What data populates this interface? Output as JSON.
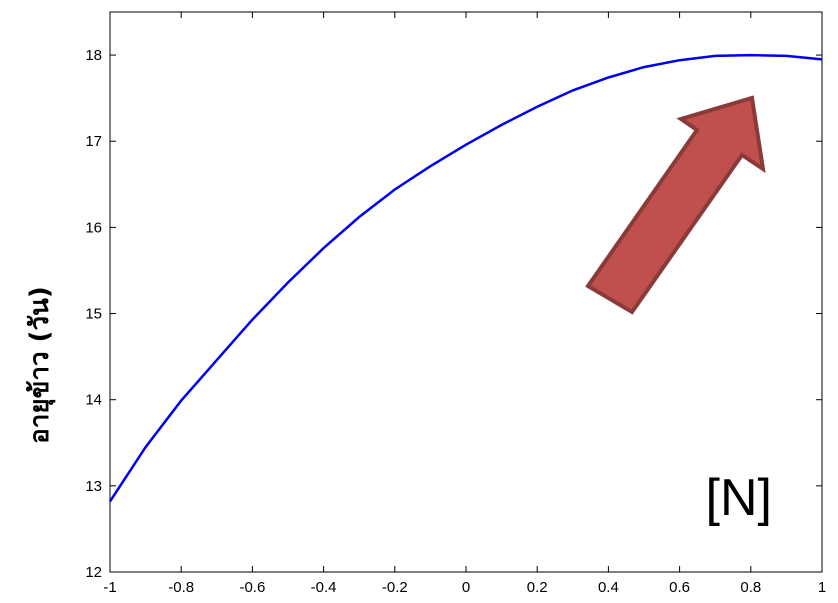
{
  "chart_data": {
    "type": "line",
    "title": "",
    "xlabel": "",
    "ylabel": "อายุข้าว (วัน)",
    "xlim": [
      -1,
      1
    ],
    "ylim": [
      12,
      18.5
    ],
    "grid": false,
    "x_ticks": [
      -1,
      -0.8,
      -0.6,
      -0.4,
      -0.2,
      0,
      0.2,
      0.4,
      0.6,
      0.8,
      1
    ],
    "x_tick_labels": [
      "-1",
      "-0.8",
      "-0.6",
      "-0.4",
      "-0.2",
      "0",
      "0.2",
      "0.4",
      "0.6",
      "0.8",
      "1"
    ],
    "y_ticks": [
      12,
      13,
      14,
      15,
      16,
      17,
      18
    ],
    "y_tick_labels": [
      "12",
      "13",
      "14",
      "15",
      "16",
      "17",
      "18"
    ],
    "series": [
      {
        "color": "#0000ee",
        "x": [
          -1,
          -0.9,
          -0.8,
          -0.7,
          -0.6,
          -0.5,
          -0.4,
          -0.3,
          -0.2,
          -0.1,
          0,
          0.1,
          0.2,
          0.3,
          0.4,
          0.5,
          0.6,
          0.7,
          0.8,
          0.9,
          1
        ],
        "y": [
          12.82,
          13.45,
          13.99,
          14.46,
          14.93,
          15.36,
          15.76,
          16.12,
          16.44,
          16.71,
          16.96,
          17.19,
          17.4,
          17.59,
          17.74,
          17.86,
          17.94,
          17.99,
          18.0,
          17.99,
          17.95
        ]
      }
    ],
    "annotations": [
      {
        "text": "[N]"
      }
    ],
    "arrow": {
      "fill": "#c0504d",
      "stroke": "#8b3a3a",
      "direction": "up-right"
    }
  }
}
